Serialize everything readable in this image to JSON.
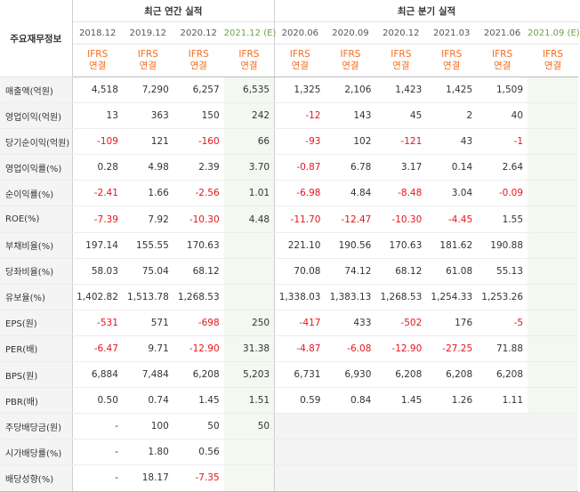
{
  "header": {
    "corner_label": "주요재무정보",
    "annual_title": "최근 연간 실적",
    "quarter_title": "최근 분기 실적",
    "annual_periods": [
      "2018.12",
      "2019.12",
      "2020.12",
      "2021.12 (E)"
    ],
    "quarter_periods": [
      "2020.06",
      "2020.09",
      "2020.12",
      "2021.03",
      "2021.06",
      "2021.09 (E)"
    ],
    "basis_line1": "IFRS",
    "basis_line2": "연결"
  },
  "colors": {
    "negative": "#e8141b",
    "ifrs": "#f26d21",
    "estimate": "#6aa34a"
  },
  "rows": [
    {
      "label": "매출액(억원)",
      "values": [
        "4,518",
        "7,290",
        "6,257",
        "6,535",
        "1,325",
        "2,106",
        "1,423",
        "1,425",
        "1,509",
        ""
      ]
    },
    {
      "label": "영업이익(억원)",
      "values": [
        "13",
        "363",
        "150",
        "242",
        "-12",
        "143",
        "45",
        "2",
        "40",
        ""
      ]
    },
    {
      "label": "당기순이익(억원)",
      "values": [
        "-109",
        "121",
        "-160",
        "66",
        "-93",
        "102",
        "-121",
        "43",
        "-1",
        ""
      ]
    },
    {
      "label": "영업이익률(%)",
      "values": [
        "0.28",
        "4.98",
        "2.39",
        "3.70",
        "-0.87",
        "6.78",
        "3.17",
        "0.14",
        "2.64",
        ""
      ]
    },
    {
      "label": "순이익률(%)",
      "values": [
        "-2.41",
        "1.66",
        "-2.56",
        "1.01",
        "-6.98",
        "4.84",
        "-8.48",
        "3.04",
        "-0.09",
        ""
      ]
    },
    {
      "label": "ROE(%)",
      "values": [
        "-7.39",
        "7.92",
        "-10.30",
        "4.48",
        "-11.70",
        "-12.47",
        "-10.30",
        "-4.45",
        "1.55",
        ""
      ]
    },
    {
      "label": "부채비율(%)",
      "values": [
        "197.14",
        "155.55",
        "170.63",
        "",
        "221.10",
        "190.56",
        "170.63",
        "181.62",
        "190.88",
        ""
      ]
    },
    {
      "label": "당좌비율(%)",
      "values": [
        "58.03",
        "75.04",
        "68.12",
        "",
        "70.08",
        "74.12",
        "68.12",
        "61.08",
        "55.13",
        ""
      ]
    },
    {
      "label": "유보율(%)",
      "values": [
        "1,402.82",
        "1,513.78",
        "1,268.53",
        "",
        "1,338.03",
        "1,383.13",
        "1,268.53",
        "1,254.33",
        "1,253.26",
        ""
      ]
    },
    {
      "label": "EPS(원)",
      "values": [
        "-531",
        "571",
        "-698",
        "250",
        "-417",
        "433",
        "-502",
        "176",
        "-5",
        ""
      ]
    },
    {
      "label": "PER(배)",
      "values": [
        "-6.47",
        "9.71",
        "-12.90",
        "31.38",
        "-4.87",
        "-6.08",
        "-12.90",
        "-27.25",
        "71.88",
        ""
      ]
    },
    {
      "label": "BPS(원)",
      "values": [
        "6,884",
        "7,484",
        "6,208",
        "5,203",
        "6,731",
        "6,930",
        "6,208",
        "6,208",
        "6,208",
        ""
      ]
    },
    {
      "label": "PBR(배)",
      "values": [
        "0.50",
        "0.74",
        "1.45",
        "1.51",
        "0.59",
        "0.84",
        "1.45",
        "1.26",
        "1.11",
        ""
      ]
    },
    {
      "label": "주당배당금(원)",
      "values": [
        "-",
        "100",
        "50",
        "50",
        "",
        "",
        "",
        "",
        "",
        ""
      ]
    },
    {
      "label": "시가배당률(%)",
      "values": [
        "-",
        "1.80",
        "0.56",
        "",
        "",
        "",
        "",
        "",
        "",
        ""
      ]
    },
    {
      "label": "배당성향(%)",
      "values": [
        "-",
        "18.17",
        "-7.35",
        "",
        "",
        "",
        "",
        "",
        "",
        ""
      ]
    }
  ]
}
